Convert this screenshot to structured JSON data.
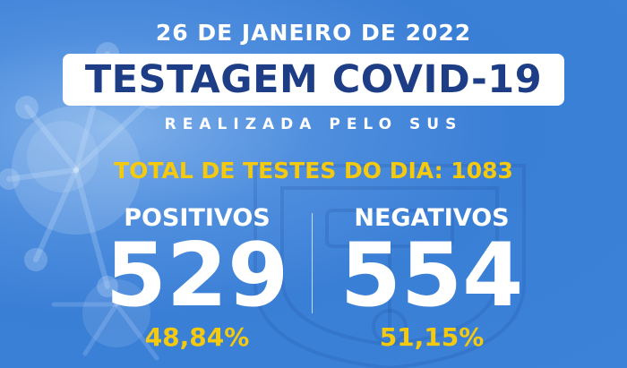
{
  "header": {
    "date": "26 DE JANEIRO DE 2022",
    "title": "TESTAGEM COVID-19",
    "subtitle": "REALIZADA PELO SUS"
  },
  "total": {
    "text": "TOTAL DE TESTES DO DIA: 1083"
  },
  "positives": {
    "label": "POSITIVOS",
    "value": "529",
    "percent": "48,84%"
  },
  "negatives": {
    "label": "NEGATIVOS",
    "value": "554",
    "percent": "51,15%"
  },
  "colors": {
    "background": "#3b82d8",
    "title_text": "#1d3e86",
    "highlight": "#f4c90e",
    "text": "#ffffff"
  },
  "icons": {
    "background_art": "virus-icon",
    "watermark": "municipal-crest-icon"
  }
}
